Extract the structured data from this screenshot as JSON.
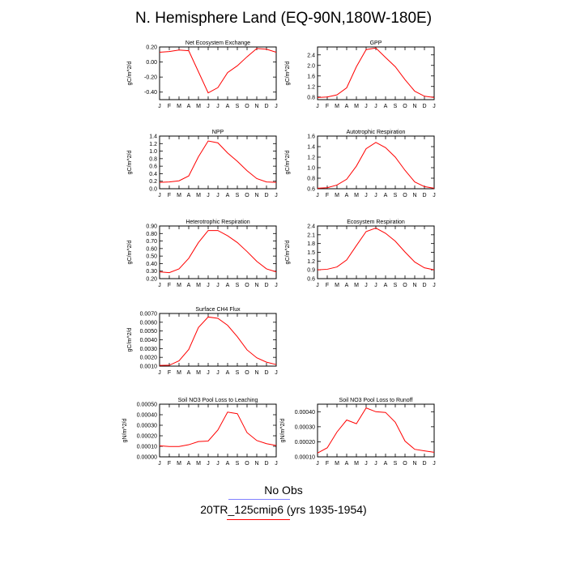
{
  "page": {
    "title": "N. Hemisphere Land (EQ-90N,180W-180E)"
  },
  "months": [
    "J",
    "F",
    "M",
    "A",
    "M",
    "J",
    "J",
    "A",
    "S",
    "O",
    "N",
    "D",
    "J"
  ],
  "legend": {
    "obs_label": "No Obs",
    "model_label": "20TR_125cmip6 (yrs 1935-1954)",
    "obs_color": "#8080ff",
    "model_color": "#ff0000"
  },
  "chart_data": [
    {
      "type": "line",
      "title": "Net Ecosystem Exchange",
      "ylabel": "gC/m^2/d",
      "ylim": [
        -0.5,
        0.2
      ],
      "yticks": [
        0.2,
        0.0,
        -0.2,
        -0.4
      ],
      "ytick_labels": [
        "0.20",
        "0.00",
        "-0.20",
        "-0.40"
      ],
      "series": [
        {
          "color": "#ff0000",
          "values": [
            0.13,
            0.14,
            0.16,
            0.15,
            -0.13,
            -0.41,
            -0.34,
            -0.14,
            -0.05,
            0.07,
            0.18,
            0.17,
            0.13
          ]
        }
      ]
    },
    {
      "type": "line",
      "title": "GPP",
      "ylabel": "gC/m^2/d",
      "ylim": [
        0.7,
        2.7
      ],
      "yticks": [
        0.8,
        1.2,
        1.6,
        2.0,
        2.4
      ],
      "ytick_labels": [
        "0.8",
        "1.2",
        "1.6",
        "2.0",
        "2.4"
      ],
      "series": [
        {
          "color": "#ff0000",
          "values": [
            0.78,
            0.8,
            0.88,
            1.15,
            1.95,
            2.6,
            2.66,
            2.3,
            1.95,
            1.46,
            1.02,
            0.83,
            0.78
          ]
        }
      ]
    },
    {
      "type": "line",
      "title": "NPP",
      "ylabel": "gC/m^2/d",
      "ylim": [
        0.0,
        1.4
      ],
      "yticks": [
        0.0,
        0.2,
        0.4,
        0.6,
        0.8,
        1.0,
        1.2,
        1.4
      ],
      "ytick_labels": [
        "0.0",
        "0.2",
        "0.4",
        "0.6",
        "0.8",
        "1.0",
        "1.2",
        "1.4"
      ],
      "series": [
        {
          "color": "#ff0000",
          "values": [
            0.17,
            0.18,
            0.21,
            0.34,
            0.85,
            1.27,
            1.22,
            0.95,
            0.73,
            0.48,
            0.27,
            0.18,
            0.17
          ]
        }
      ]
    },
    {
      "type": "line",
      "title": "Autotrophic Respiration",
      "ylabel": "gC/m^2/d",
      "ylim": [
        0.6,
        1.6
      ],
      "yticks": [
        0.6,
        0.8,
        1.0,
        1.2,
        1.4,
        1.6
      ],
      "ytick_labels": [
        "0.6",
        "0.8",
        "1.0",
        "1.2",
        "1.4",
        "1.6"
      ],
      "series": [
        {
          "color": "#ff0000",
          "values": [
            0.61,
            0.62,
            0.67,
            0.78,
            1.03,
            1.36,
            1.48,
            1.38,
            1.2,
            0.95,
            0.73,
            0.64,
            0.61
          ]
        }
      ]
    },
    {
      "type": "line",
      "title": "Heterotrophic Respiration",
      "ylabel": "gC/m^2/d",
      "ylim": [
        0.2,
        0.9
      ],
      "yticks": [
        0.2,
        0.3,
        0.4,
        0.5,
        0.6,
        0.7,
        0.8,
        0.9
      ],
      "ytick_labels": [
        "0.20",
        "0.30",
        "0.40",
        "0.50",
        "0.60",
        "0.70",
        "0.80",
        "0.90"
      ],
      "series": [
        {
          "color": "#ff0000",
          "values": [
            0.29,
            0.28,
            0.33,
            0.47,
            0.68,
            0.84,
            0.84,
            0.77,
            0.68,
            0.56,
            0.43,
            0.33,
            0.29
          ]
        }
      ]
    },
    {
      "type": "line",
      "title": "Ecosystem Respiration",
      "ylabel": "gC/m^2/d",
      "ylim": [
        0.6,
        2.4
      ],
      "yticks": [
        0.6,
        0.9,
        1.2,
        1.5,
        1.8,
        2.1,
        2.4
      ],
      "ytick_labels": [
        "0.6",
        "0.9",
        "1.2",
        "1.5",
        "1.8",
        "2.1",
        "2.4"
      ],
      "series": [
        {
          "color": "#ff0000",
          "values": [
            0.9,
            0.92,
            1.0,
            1.24,
            1.73,
            2.21,
            2.33,
            2.15,
            1.88,
            1.51,
            1.17,
            0.97,
            0.9
          ]
        }
      ]
    },
    {
      "type": "line",
      "title": "Surface CH4 Flux",
      "ylabel": "gC/m^2/d",
      "ylim": [
        0.001,
        0.007
      ],
      "yticks": [
        0.001,
        0.002,
        0.003,
        0.004,
        0.005,
        0.006,
        0.007
      ],
      "ytick_labels": [
        "0.0010",
        "0.0020",
        "0.0030",
        "0.0040",
        "0.0050",
        "0.0060",
        "0.0070"
      ],
      "series": [
        {
          "color": "#ff0000",
          "values": [
            0.00108,
            0.0011,
            0.0016,
            0.0029,
            0.0054,
            0.0066,
            0.00645,
            0.00565,
            0.00435,
            0.00285,
            0.00195,
            0.00145,
            0.00118
          ]
        }
      ]
    },
    {
      "type": "line",
      "title": "Soil NO3 Pool Loss to Leaching",
      "ylabel": "gN/m^2/d",
      "ylim": [
        0.0,
        0.0005
      ],
      "yticks": [
        0.0,
        0.0001,
        0.0002,
        0.0003,
        0.0004,
        0.0005
      ],
      "ytick_labels": [
        "0.00000",
        "0.00010",
        "0.00020",
        "0.00030",
        "0.00040",
        "0.00050"
      ],
      "series": [
        {
          "color": "#ff0000",
          "values": [
            0.000105,
            9.8e-05,
            9.8e-05,
            0.000115,
            0.000145,
            0.00015,
            0.000255,
            0.000425,
            0.00041,
            0.00023,
            0.000155,
            0.000125,
            0.000108
          ]
        }
      ]
    },
    {
      "type": "line",
      "title": "Soil NO3 Pool Loss to Runoff",
      "ylabel": "gN/m^2/d",
      "ylim": [
        0.0001,
        0.00045
      ],
      "yticks": [
        0.0001,
        0.0002,
        0.0003,
        0.0004
      ],
      "ytick_labels": [
        "0.00010",
        "0.00020",
        "0.00030",
        "0.00040"
      ],
      "series": [
        {
          "color": "#ff0000",
          "values": [
            0.000125,
            0.00016,
            0.000265,
            0.000345,
            0.00032,
            0.000425,
            0.0004,
            0.000395,
            0.00033,
            0.000205,
            0.00015,
            0.00014,
            0.00013
          ]
        }
      ]
    }
  ]
}
